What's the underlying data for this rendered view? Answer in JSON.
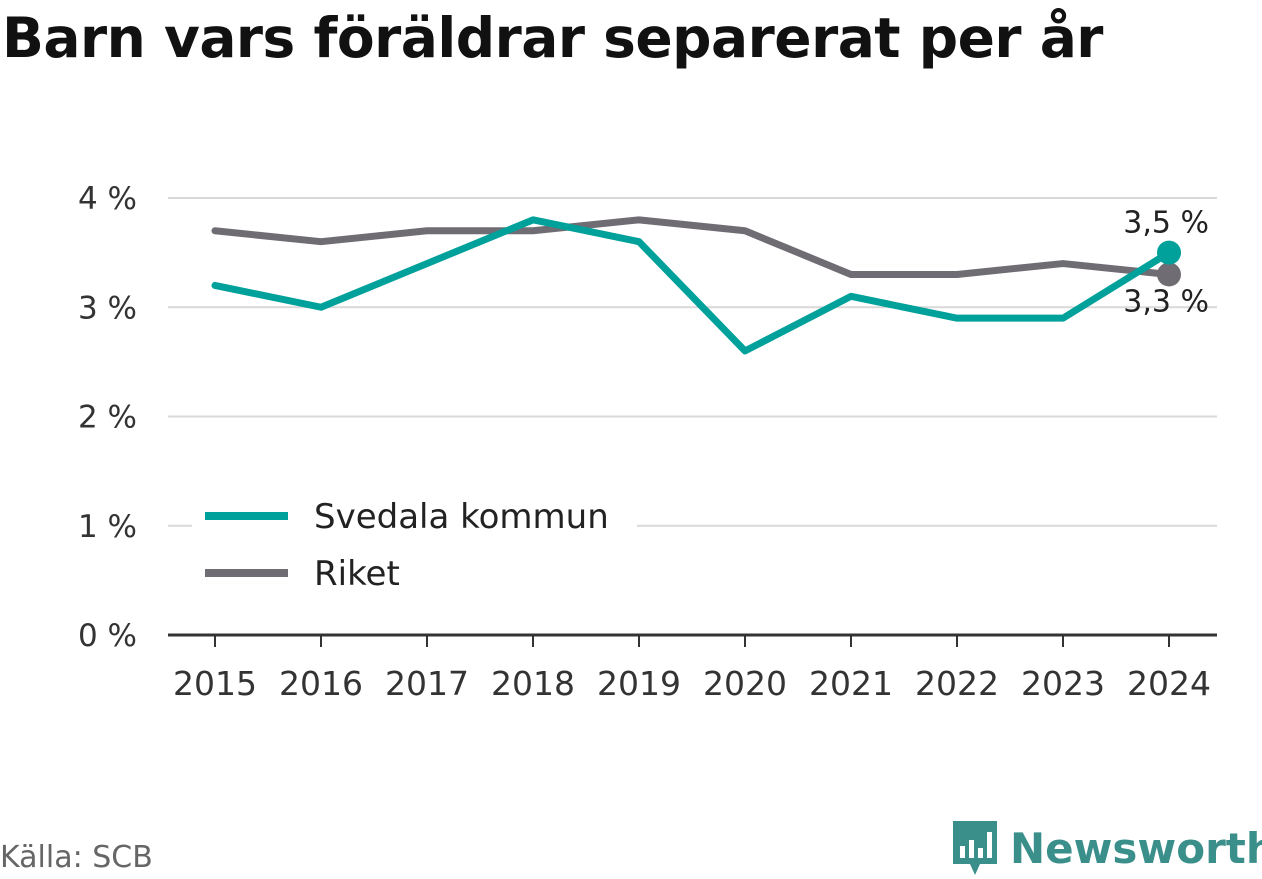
{
  "title": "Barn vars föräldrar separerat per år",
  "source": "Källa: SCB",
  "brand": {
    "name": "Newsworthy",
    "icon": "bar-chart-logo-icon"
  },
  "colors": {
    "svedala": "#00a19a",
    "riket": "#6f6d73",
    "grid": "#d9d9d9",
    "axis": "#333333",
    "brand": "#3a8f8b"
  },
  "chart_data": {
    "type": "line",
    "categories": [
      "2015",
      "2016",
      "2017",
      "2018",
      "2019",
      "2020",
      "2021",
      "2022",
      "2023",
      "2024"
    ],
    "series": [
      {
        "name": "Svedala kommun",
        "values": [
          3.2,
          3.0,
          3.4,
          3.8,
          3.6,
          2.6,
          3.1,
          2.9,
          2.9,
          3.5
        ],
        "end_label": "3,5 %"
      },
      {
        "name": "Riket",
        "values": [
          3.7,
          3.6,
          3.7,
          3.7,
          3.8,
          3.7,
          3.3,
          3.3,
          3.4,
          3.3
        ],
        "end_label": "3,3 %"
      }
    ],
    "yticks": [
      "0 %",
      "1 %",
      "2 %",
      "3 %",
      "4 %"
    ],
    "ylim": [
      0,
      4
    ],
    "grid": true,
    "legend": "bottom-left"
  }
}
